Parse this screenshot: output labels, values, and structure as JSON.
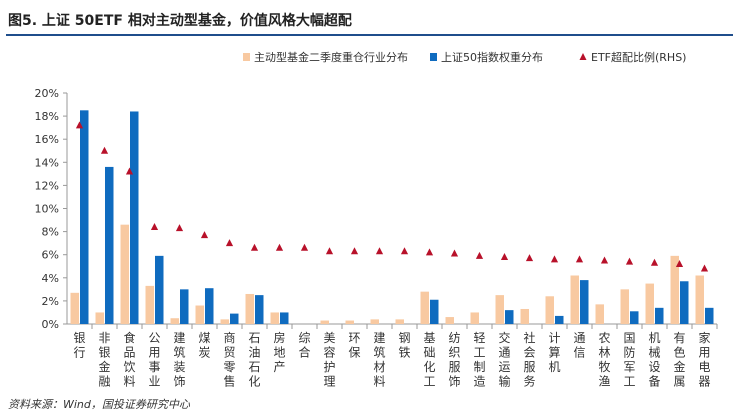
{
  "title": "图5. 上证 50ETF 相对主动型基金，价值风格大幅超配",
  "source": "资料来源：Wind，国投证券研究中心",
  "colors": {
    "active": "#f8c9a1",
    "index": "#0f6bbf",
    "etf": "#b8112a",
    "axis": "#999999"
  },
  "chart_data": {
    "type": "bar",
    "categories": [
      "银行",
      "非银金融",
      "食品饮料",
      "公用事业",
      "建筑装饰",
      "煤炭",
      "商贸零售",
      "石油石化",
      "房地产",
      "综合",
      "美容护理",
      "环保",
      "建筑材料",
      "钢铁",
      "基础化工",
      "纺织服饰",
      "轻工制造",
      "交通运输",
      "社会服务",
      "计算机",
      "通信",
      "农林牧渔",
      "国防军工",
      "机械设备",
      "有色金属",
      "家用电器"
    ],
    "series": [
      {
        "name": "主动型基金二季度重仓行业分布",
        "kind": "bar",
        "values": [
          2.7,
          1.0,
          8.6,
          3.3,
          0.5,
          1.6,
          0.4,
          2.6,
          1.0,
          0.0,
          0.3,
          0.3,
          0.4,
          0.4,
          2.8,
          0.6,
          1.0,
          2.5,
          1.3,
          2.4,
          4.2,
          1.7,
          3.0,
          3.5,
          5.9,
          4.2
        ]
      },
      {
        "name": "上证50指数权重分布",
        "kind": "bar",
        "values": [
          18.5,
          13.6,
          18.4,
          5.9,
          3.0,
          3.1,
          0.9,
          2.5,
          1.0,
          0.0,
          0.0,
          0.0,
          0.0,
          0.0,
          2.1,
          0.0,
          0.0,
          1.2,
          0.0,
          0.7,
          3.8,
          0.0,
          1.1,
          1.4,
          3.7,
          1.4
        ]
      },
      {
        "name": "ETF超配比例(RHS)",
        "kind": "marker",
        "values": [
          17.2,
          15.0,
          13.2,
          8.4,
          8.3,
          7.7,
          7.0,
          6.6,
          6.6,
          6.6,
          6.3,
          6.3,
          6.3,
          6.3,
          6.2,
          6.1,
          5.9,
          5.8,
          5.7,
          5.6,
          5.6,
          5.5,
          5.4,
          5.3,
          5.2,
          4.8
        ]
      }
    ],
    "yticks": [
      "0%",
      "2%",
      "4%",
      "6%",
      "8%",
      "10%",
      "12%",
      "14%",
      "16%",
      "18%",
      "20%"
    ],
    "ylim": [
      0,
      20
    ],
    "grid": true,
    "legend_position": "top-right"
  }
}
